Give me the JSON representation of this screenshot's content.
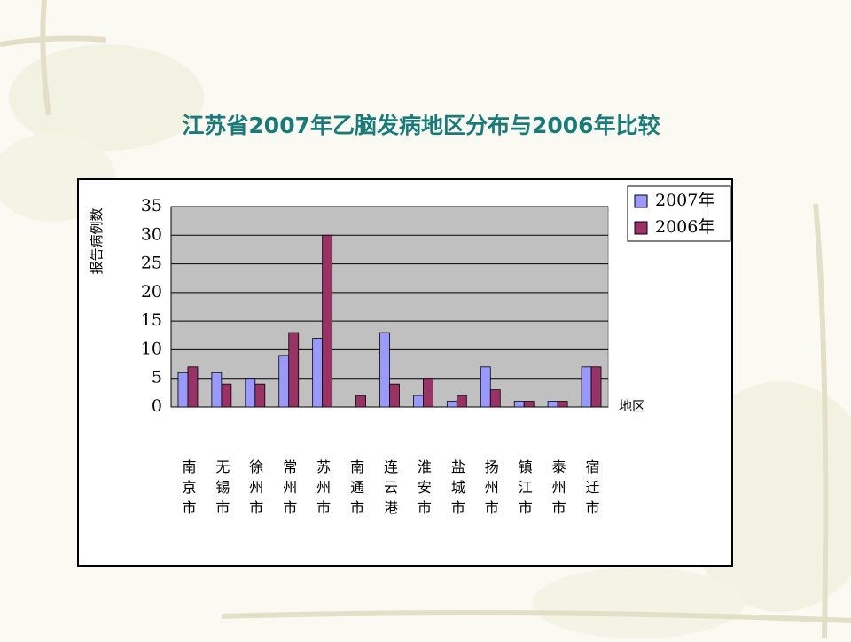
{
  "chart_data": {
    "type": "bar",
    "title": "江苏省2007年乙脑发病地区分布与2006年比较",
    "y_label": "报告病例数",
    "x_label": "地区",
    "categories": [
      "南京市",
      "无锡市",
      "徐州市",
      "常州市",
      "苏州市",
      "南通市",
      "连云港",
      "淮安市",
      "盐城市",
      "扬州市",
      "镇江市",
      "泰州市",
      "宿迁市"
    ],
    "series": [
      {
        "name": "2007年",
        "color": "#9999ff",
        "values": [
          6,
          6,
          5,
          9,
          12,
          0,
          13,
          2,
          1,
          7,
          1,
          1,
          7
        ]
      },
      {
        "name": "2006年",
        "color": "#993366",
        "values": [
          7,
          4,
          4,
          13,
          30,
          2,
          4,
          5,
          2,
          3,
          1,
          1,
          7
        ]
      }
    ],
    "ylim": [
      0,
      35
    ],
    "yticks": [
      0,
      5,
      10,
      15,
      20,
      25,
      30,
      35
    ],
    "grid": true,
    "plot_background": "#c0c0c0",
    "legend": "top-right"
  }
}
